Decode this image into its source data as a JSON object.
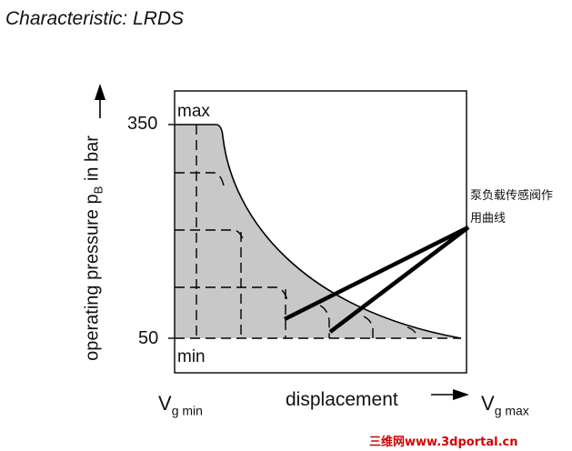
{
  "title": "Characteristic: LRDS",
  "y_axis": {
    "label_main": "operating pressure  p",
    "label_sub": "B",
    "label_tail": " in bar",
    "tick_high": "350",
    "tick_low": "50"
  },
  "x_axis": {
    "label": "displacement",
    "min_main": "V",
    "min_sub": "g min",
    "max_main": "V",
    "max_sub": "g max"
  },
  "inner_labels": {
    "max": "max",
    "min": "min"
  },
  "annotation": {
    "line1": "泵负载传感阀作",
    "line2": "用曲线"
  },
  "watermark": "三维网www.3dportal.cn",
  "colors": {
    "fill": "#c8c8c8",
    "stroke": "#000000",
    "watermark": "#d40000"
  }
}
